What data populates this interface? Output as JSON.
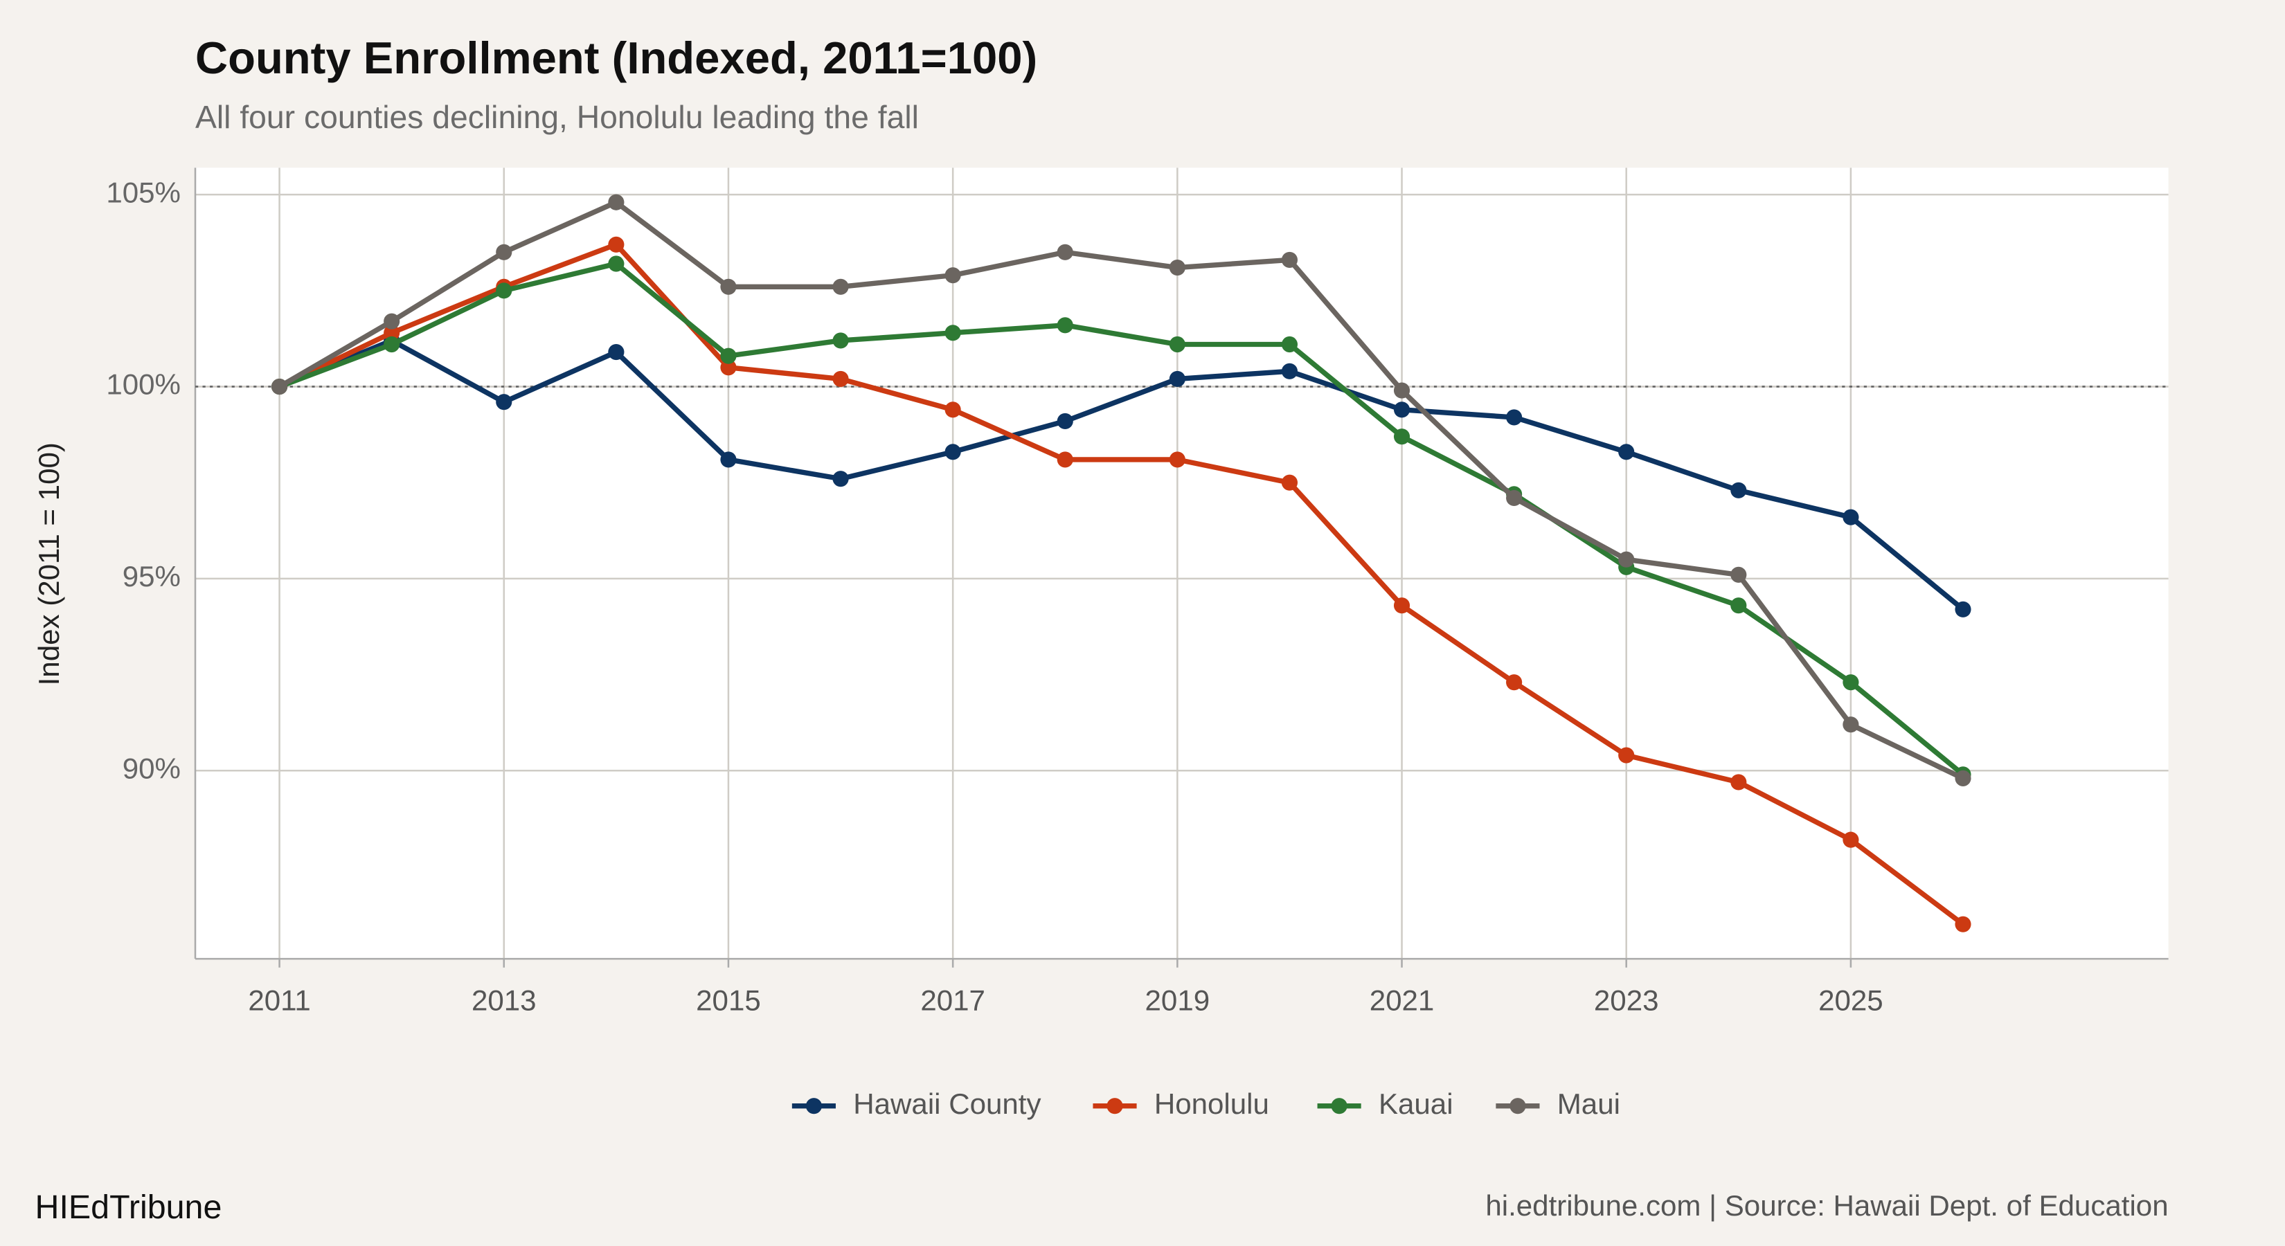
{
  "chart_data": {
    "type": "line",
    "title": "County Enrollment (Indexed, 2011=100)",
    "subtitle": "All four counties declining, Honolulu leading the fall",
    "y_label": "Index (2011 = 100)",
    "x": [
      2011,
      2012,
      2013,
      2014,
      2015,
      2016,
      2017,
      2018,
      2019,
      2020,
      2021,
      2022,
      2023,
      2024,
      2025,
      2026
    ],
    "series": [
      {
        "name": "Hawaii County",
        "color": "#0d3462",
        "values": [
          100,
          101.2,
          99.6,
          100.9,
          98.1,
          97.6,
          98.3,
          99.1,
          100.2,
          100.4,
          99.4,
          99.2,
          98.3,
          97.3,
          96.6,
          94.2
        ]
      },
      {
        "name": "Honolulu",
        "color": "#cc3a12",
        "values": [
          100,
          101.4,
          102.6,
          103.7,
          100.5,
          100.2,
          99.4,
          98.1,
          98.1,
          97.5,
          94.3,
          92.3,
          90.4,
          89.7,
          88.2,
          86.0
        ]
      },
      {
        "name": "Kauai",
        "color": "#2e7a34",
        "values": [
          100,
          101.1,
          102.5,
          103.2,
          100.8,
          101.2,
          101.4,
          101.6,
          101.1,
          101.1,
          98.7,
          97.2,
          95.3,
          94.3,
          92.3,
          89.9
        ]
      },
      {
        "name": "Maui",
        "color": "#6b6560",
        "values": [
          100,
          101.7,
          103.5,
          104.8,
          102.6,
          102.6,
          102.9,
          103.5,
          103.1,
          103.3,
          99.9,
          97.1,
          95.5,
          95.1,
          91.2,
          89.8
        ]
      }
    ],
    "xlim": [
      2010.25,
      2027.83
    ],
    "ylim": [
      85.1,
      105.7
    ],
    "xticks": [
      2011,
      2013,
      2015,
      2017,
      2019,
      2021,
      2023,
      2025
    ],
    "yticks": [
      {
        "value": 90,
        "label": "90%"
      },
      {
        "value": 95,
        "label": "95%"
      },
      {
        "value": 100,
        "label": "100%"
      },
      {
        "value": 105,
        "label": "105%"
      }
    ],
    "reference_line": 100,
    "grid": true,
    "legend": "bottom",
    "brand": "HIEdTribune",
    "source": "hi.edtribune.com | Source: Hawaii Dept. of Education"
  }
}
